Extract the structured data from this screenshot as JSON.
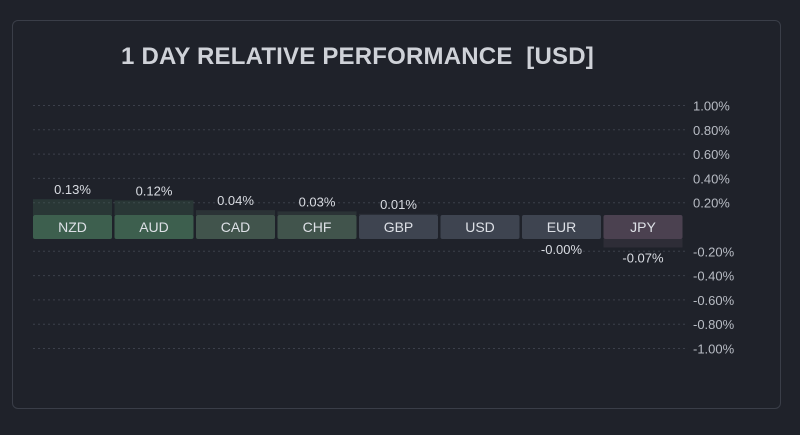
{
  "title": "1 DAY RELATIVE PERFORMANCE  [USD]",
  "colors": {
    "background": "#1f222a",
    "grid": "#3c404b",
    "tick_text": "#b8bcc4",
    "value_text": "#d9dce2",
    "positive_strong": "#3d5f4e",
    "positive_mid": "#41544c",
    "neutral": "#3e4450",
    "negative": "#4b4150"
  },
  "chart_data": {
    "type": "bar",
    "title": "1 DAY RELATIVE PERFORMANCE  [USD]",
    "categories": [
      "NZD",
      "AUD",
      "CAD",
      "CHF",
      "GBP",
      "USD",
      "EUR",
      "JPY"
    ],
    "values": [
      0.13,
      0.12,
      0.04,
      0.03,
      0.01,
      0,
      -0.0,
      -0.07
    ],
    "value_labels": [
      "0.13%",
      "0.12%",
      "0.04%",
      "0.03%",
      "0.01%",
      "",
      "-0.00%",
      "-0.07%"
    ],
    "ylim": [
      -1.0,
      1.0
    ],
    "yticks": [
      1.0,
      0.8,
      0.6,
      0.4,
      0.2,
      -0.2,
      -0.4,
      -0.6,
      -0.8,
      -1.0
    ],
    "ytick_labels": [
      "1.00%",
      "0.80%",
      "0.60%",
      "0.40%",
      "0.20%",
      "-0.20%",
      "-0.40%",
      "-0.60%",
      "-0.80%",
      "-1.00%"
    ],
    "grid": true,
    "legend": "none"
  }
}
